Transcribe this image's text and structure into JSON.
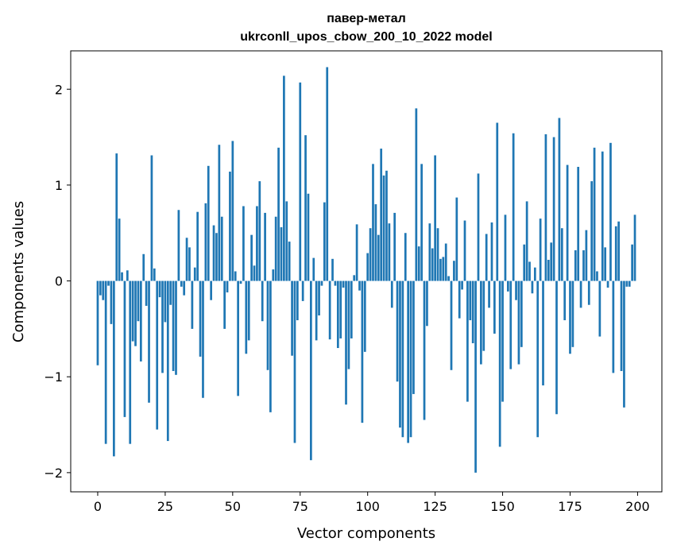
{
  "chart_data": {
    "type": "bar",
    "title": "павер-метал",
    "subtitle": "ukrconll_upos_cbow_200_10_2022 model",
    "xlabel": "Vector components",
    "ylabel": "Components values",
    "xlim": [
      -10,
      209
    ],
    "ylim": [
      -2.2,
      2.4
    ],
    "xticks": [
      0,
      25,
      50,
      75,
      100,
      125,
      150,
      175,
      200
    ],
    "yticks": [
      -2,
      -1,
      0,
      1,
      2
    ],
    "xtick_labels": [
      "0",
      "25",
      "50",
      "75",
      "100",
      "125",
      "150",
      "175",
      "200"
    ],
    "ytick_labels": [
      "−2",
      "−1",
      "0",
      "1",
      "2"
    ],
    "grid": false,
    "bar_color": "#1f77b4",
    "values": [
      -0.88,
      -0.15,
      -0.2,
      -1.7,
      -0.05,
      -0.45,
      -1.83,
      1.33,
      0.65,
      0.09,
      -1.42,
      0.11,
      -1.7,
      -0.63,
      -0.68,
      -0.42,
      -0.84,
      0.28,
      -0.26,
      -1.27,
      1.31,
      0.13,
      -1.55,
      -0.17,
      -0.96,
      -0.43,
      -1.67,
      -0.25,
      -0.94,
      -0.98,
      0.74,
      -0.06,
      -0.15,
      0.45,
      0.35,
      -0.5,
      0.14,
      0.72,
      -0.79,
      -1.22,
      0.81,
      1.2,
      -0.2,
      0.58,
      0.5,
      1.42,
      0.67,
      -0.5,
      -0.12,
      1.14,
      1.46,
      0.1,
      -1.2,
      -0.03,
      0.78,
      -0.76,
      -0.62,
      0.48,
      0.16,
      0.78,
      1.04,
      -0.42,
      0.71,
      -0.93,
      -1.37,
      0.12,
      0.67,
      1.39,
      0.56,
      2.14,
      0.83,
      0.41,
      -0.78,
      -1.69,
      -0.41,
      2.07,
      -0.21,
      1.52,
      0.91,
      -1.87,
      0.24,
      -0.62,
      -0.36,
      -0.05,
      0.82,
      2.23,
      -0.61,
      0.23,
      -0.05,
      -0.7,
      -0.6,
      -0.07,
      -1.29,
      -0.92,
      -0.6,
      0.06,
      0.59,
      -0.1,
      -1.48,
      -0.74,
      0.29,
      0.55,
      1.22,
      0.8,
      0.48,
      1.38,
      1.1,
      1.15,
      0.6,
      -0.28,
      0.71,
      -1.05,
      -1.53,
      -1.63,
      0.5,
      -1.69,
      -1.63,
      -1.18,
      1.8,
      0.36,
      1.22,
      -1.45,
      -0.47,
      0.6,
      0.34,
      1.31,
      0.55,
      0.23,
      0.25,
      0.39,
      0.05,
      -0.93,
      0.21,
      0.87,
      -0.39,
      -0.09,
      0.63,
      -1.26,
      -0.41,
      -0.65,
      -2.0,
      1.12,
      -0.87,
      -0.73,
      0.49,
      -0.28,
      0.61,
      -0.55,
      1.65,
      -1.73,
      -1.26,
      0.69,
      -0.11,
      -0.92,
      1.54,
      -0.2,
      -0.87,
      -0.69,
      0.38,
      0.83,
      0.2,
      -0.13,
      0.14,
      -1.63,
      0.65,
      -1.09,
      1.53,
      0.22,
      0.4,
      1.5,
      -1.39,
      1.7,
      0.55,
      -0.41,
      1.21,
      -0.76,
      -0.69,
      0.32,
      1.19,
      -0.28,
      0.32,
      0.53,
      -0.25,
      1.04,
      1.39,
      0.1,
      -0.58,
      1.35,
      0.35,
      -0.07,
      1.44,
      -0.96,
      0.57,
      0.62,
      -0.94,
      -1.32,
      -0.06,
      -0.06,
      0.38,
      0.69
    ]
  }
}
